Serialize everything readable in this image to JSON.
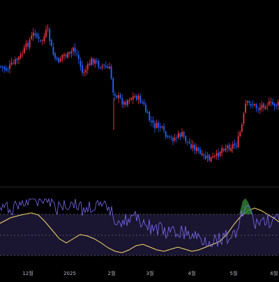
{
  "chart_data": [
    {
      "type": "candlestick",
      "title": "",
      "colors": {
        "up": "#f23645",
        "down": "#2962ff",
        "background": "#000000"
      },
      "x_tick_labels": [
        "12월",
        "2025",
        "2월",
        "3월",
        "4월",
        "5월",
        "6월"
      ],
      "grid": false,
      "approx_close_path": [
        {
          "x": "11월 중순",
          "close": 82
        },
        {
          "x": "12월 초",
          "close": 88
        },
        {
          "x": "12월 중순",
          "close": 97
        },
        {
          "x": "12월 말",
          "close": 86
        },
        {
          "x": "2025 초",
          "close": 90
        },
        {
          "x": "1월 말",
          "close": 84
        },
        {
          "x": "2월 중순",
          "close": 70
        },
        {
          "x": "3월 초",
          "close": 62
        },
        {
          "x": "3월 말",
          "close": 55
        },
        {
          "x": "4월 초",
          "close": 46
        },
        {
          "x": "4월 말",
          "close": 50
        },
        {
          "x": "5월 초",
          "close": 72
        },
        {
          "x": "5월 말",
          "close": 74
        },
        {
          "x": "6월",
          "close": 75
        }
      ]
    },
    {
      "type": "line",
      "title": "",
      "series": [
        {
          "color": "#7b6cf6",
          "role": "oscillator"
        },
        {
          "color": "#f7dc6f",
          "role": "signal"
        }
      ],
      "band": {
        "fill": "#1a1530",
        "lines": [
          "upper",
          "middle",
          "lower"
        ]
      },
      "highlight_color": "#2e7d32"
    }
  ]
}
